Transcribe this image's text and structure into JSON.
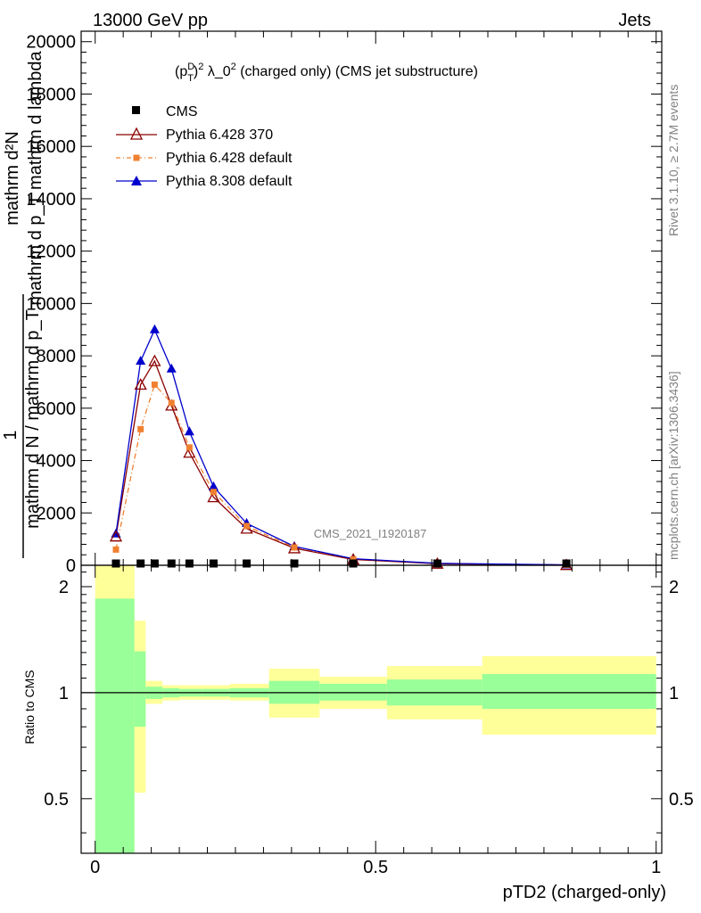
{
  "header": {
    "left": "13000 GeV pp",
    "right": "Jets"
  },
  "side_labels": {
    "rivet": "Rivet 3.1.10, ≥ 2.7M events",
    "mcplots": "mcplots.cern.ch [arXiv:1306.3436]"
  },
  "y_label_main": {
    "line1": "mathrm d²N",
    "line2": "mathrm d p_T mathrm d lambda",
    "numerator": "1",
    "denominator": "mathrm d N / mathrm d p_T"
  },
  "ratio_ylabel": "Ratio to CMS",
  "x_axis_label": "pTD2 (charged-only)",
  "watermark": "CMS_2021_I1920187",
  "colors": {
    "cms": "#000000",
    "p6_370": "#8b0000",
    "p6_default": "#f08030",
    "p8_default": "#0000cc",
    "band_inner": "#99ff99",
    "band_outer": "#ffff99"
  },
  "chart_data": [
    {
      "type": "line",
      "title_parts": {
        "p": "(p",
        "sup_d": "D",
        "sub_t": "T",
        "close": ")",
        "sup_2": "2",
        "lambda": " λ_0",
        "sup_2b": "2",
        "rest": " (charged only) (CMS jet substructure)"
      },
      "x": [
        0.037,
        0.081,
        0.106,
        0.136,
        0.168,
        0.211,
        0.27,
        0.355,
        0.46,
        0.61,
        0.84
      ],
      "xlim": [
        -0.025,
        1.01
      ],
      "ylim": [
        0,
        20400
      ],
      "yticks": [
        0,
        2000,
        4000,
        6000,
        8000,
        10000,
        12000,
        14000,
        16000,
        18000,
        20000
      ],
      "ytick_labels": [
        "0",
        "2000",
        "4000",
        "6000",
        "8000",
        "10000",
        "12000",
        "14000",
        "16000",
        "18000",
        "20000"
      ],
      "series": [
        {
          "name": "CMS",
          "values": [
            10,
            20,
            30,
            30,
            25,
            20,
            15,
            10,
            5,
            2,
            1
          ]
        },
        {
          "name": "Pythia 6.428 370",
          "values": [
            1100,
            6900,
            7800,
            6100,
            4300,
            2600,
            1400,
            650,
            220,
            60,
            10
          ]
        },
        {
          "name": "Pythia 6.428 default",
          "values": [
            600,
            5200,
            6900,
            6200,
            4500,
            2800,
            1500,
            680,
            230,
            70,
            15
          ]
        },
        {
          "name": "Pythia 8.308 default",
          "values": [
            1200,
            7800,
            9000,
            7500,
            5100,
            3000,
            1600,
            720,
            250,
            75,
            15
          ]
        }
      ]
    },
    {
      "type": "area",
      "ylabel": "Ratio to CMS",
      "xlabel": "pTD2 (charged-only)",
      "ylim": [
        0.35,
        2.3
      ],
      "scale": "log",
      "yticks": [
        0.5,
        1,
        2
      ],
      "ytick_labels": [
        "0.5",
        "1",
        "2"
      ],
      "xticks": [
        0,
        0.5,
        1
      ],
      "xtick_labels": [
        "0",
        "0.5",
        "1"
      ],
      "bins": [
        {
          "x0": 0.0,
          "x1": 0.07,
          "inner": [
            0.3,
            1.85
          ],
          "outer": [
            0.3,
            2.4
          ]
        },
        {
          "x0": 0.07,
          "x1": 0.09,
          "inner": [
            0.8,
            1.31
          ],
          "outer": [
            0.52,
            1.6
          ]
        },
        {
          "x0": 0.09,
          "x1": 0.12,
          "inner": [
            0.96,
            1.04
          ],
          "outer": [
            0.93,
            1.08
          ]
        },
        {
          "x0": 0.12,
          "x1": 0.15,
          "inner": [
            0.97,
            1.03
          ],
          "outer": [
            0.95,
            1.05
          ]
        },
        {
          "x0": 0.15,
          "x1": 0.19,
          "inner": [
            0.975,
            1.025
          ],
          "outer": [
            0.955,
            1.05
          ]
        },
        {
          "x0": 0.19,
          "x1": 0.24,
          "inner": [
            0.975,
            1.025
          ],
          "outer": [
            0.955,
            1.05
          ]
        },
        {
          "x0": 0.24,
          "x1": 0.31,
          "inner": [
            0.97,
            1.03
          ],
          "outer": [
            0.95,
            1.06
          ]
        },
        {
          "x0": 0.31,
          "x1": 0.4,
          "inner": [
            0.93,
            1.08
          ],
          "outer": [
            0.85,
            1.17
          ]
        },
        {
          "x0": 0.4,
          "x1": 0.52,
          "inner": [
            0.95,
            1.06
          ],
          "outer": [
            0.9,
            1.11
          ]
        },
        {
          "x0": 0.52,
          "x1": 0.69,
          "inner": [
            0.92,
            1.09
          ],
          "outer": [
            0.84,
            1.19
          ]
        },
        {
          "x0": 0.69,
          "x1": 1.0,
          "inner": [
            0.9,
            1.13
          ],
          "outer": [
            0.76,
            1.27
          ]
        }
      ],
      "reference_line": 1
    }
  ]
}
